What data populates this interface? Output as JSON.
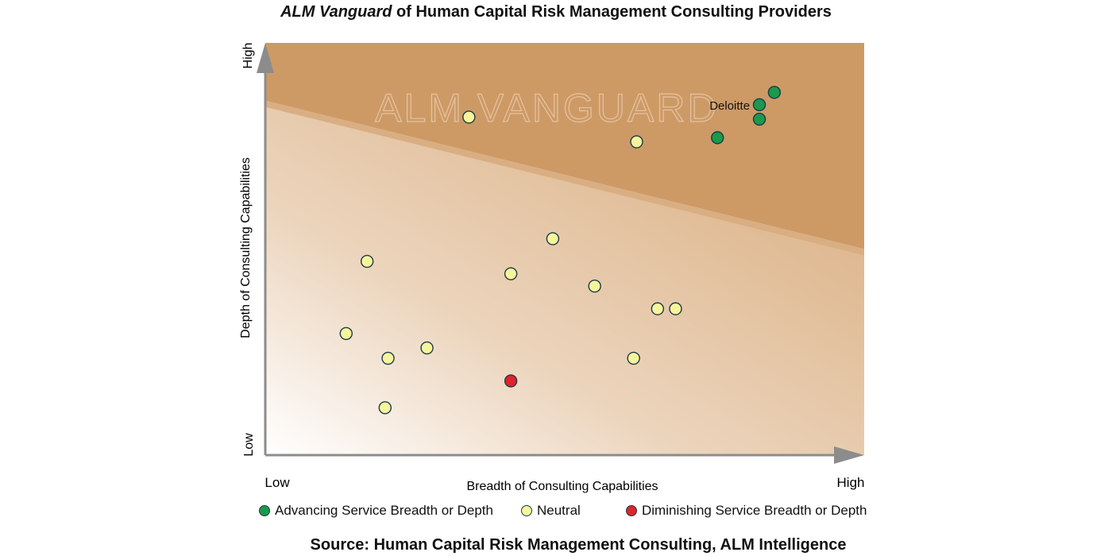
{
  "chart_data": {
    "type": "scatter",
    "title_italic": "ALM Vanguard",
    "title_rest": " of Human Capital Risk Management Consulting Providers",
    "xlabel": "Breadth of Consulting Capabilities",
    "ylabel": "Depth of Consulting Capabilities",
    "x_low": "Low",
    "x_high": "High",
    "y_low": "Low",
    "y_high": "High",
    "xlim": [
      0,
      100
    ],
    "ylim": [
      0,
      100
    ],
    "watermark": "ALM VANGUARD",
    "vanguard_boundary": [
      [
        0,
        86
      ],
      [
        100,
        50
      ]
    ],
    "series": [
      {
        "name": "Advancing Service Breadth or Depth",
        "color": "#1a9a4a",
        "points": [
          {
            "x": 85,
            "y": 88,
            "label": ""
          },
          {
            "x": 82.5,
            "y": 85,
            "label": "Deloitte"
          },
          {
            "x": 82.5,
            "y": 81.5,
            "label": ""
          },
          {
            "x": 75.5,
            "y": 77,
            "label": ""
          }
        ]
      },
      {
        "name": "Neutral",
        "color": "#f7f59c",
        "points": [
          {
            "x": 34,
            "y": 82
          },
          {
            "x": 62,
            "y": 76
          },
          {
            "x": 48,
            "y": 52.5
          },
          {
            "x": 17,
            "y": 47
          },
          {
            "x": 41,
            "y": 44
          },
          {
            "x": 55,
            "y": 41
          },
          {
            "x": 65.5,
            "y": 35.5
          },
          {
            "x": 68.5,
            "y": 35.5
          },
          {
            "x": 13.5,
            "y": 29.5
          },
          {
            "x": 27,
            "y": 26
          },
          {
            "x": 20.5,
            "y": 23.5
          },
          {
            "x": 61.5,
            "y": 23.5
          },
          {
            "x": 20,
            "y": 11.5
          }
        ]
      },
      {
        "name": "Diminishing Service Breadth or Depth",
        "color": "#e0232c",
        "points": [
          {
            "x": 41,
            "y": 18
          }
        ]
      }
    ]
  },
  "source": "Source: Human Capital Risk Management Consulting, ALM Intelligence"
}
